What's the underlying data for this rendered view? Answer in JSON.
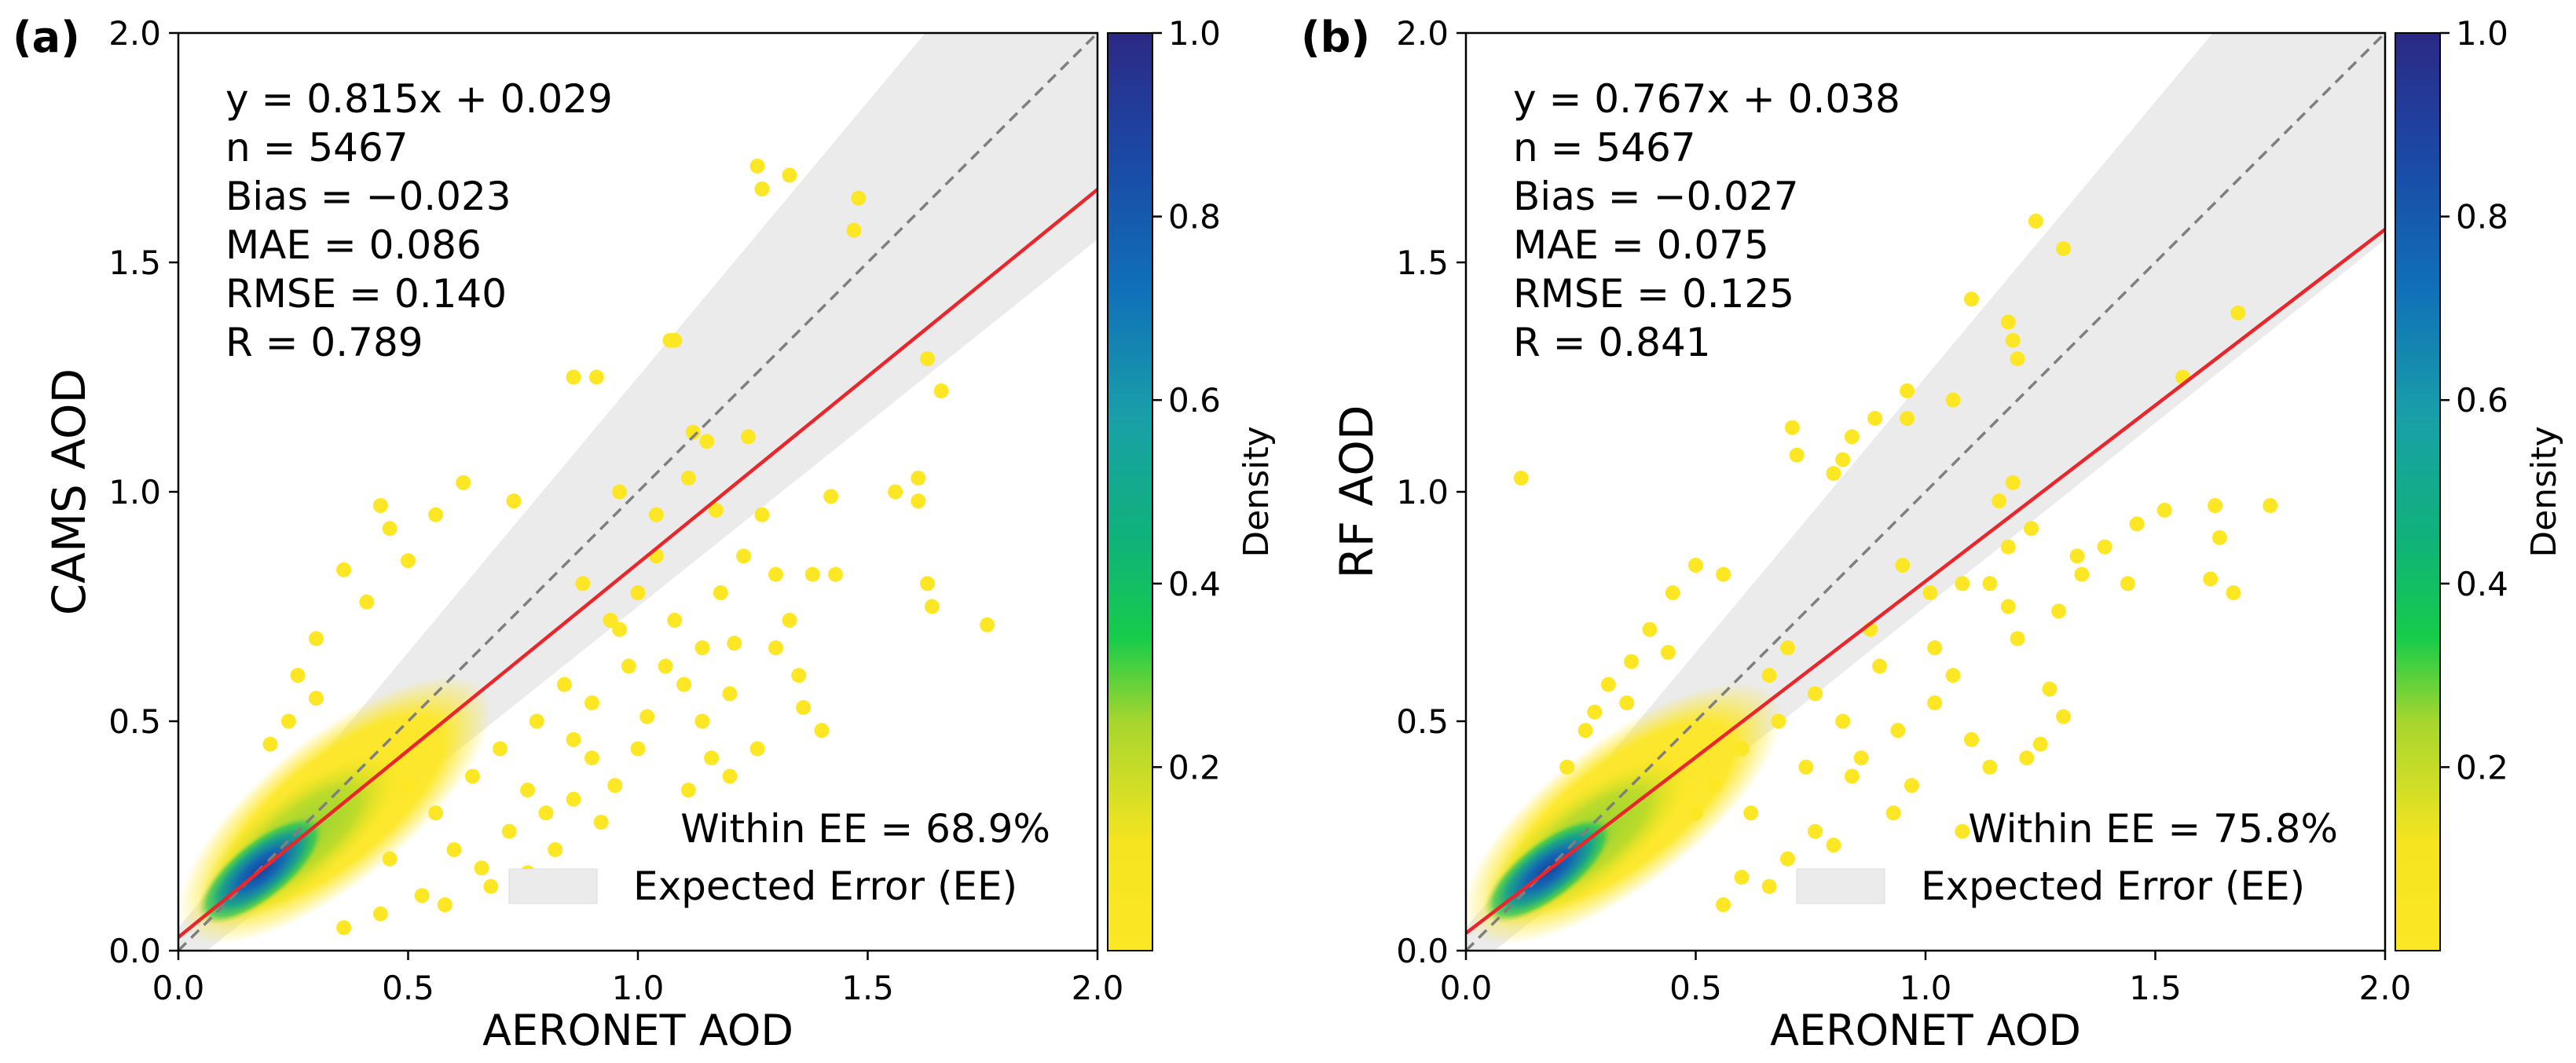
{
  "chart_data": [
    {
      "panel_label": "(a)",
      "type": "scatter",
      "xlabel": "AERONET AOD",
      "ylabel": "CAMS AOD",
      "xlim": [
        0,
        2.0
      ],
      "ylim": [
        0,
        2.0
      ],
      "ticks": [
        "0.0",
        "0.5",
        "1.0",
        "1.5",
        "2.0"
      ],
      "stats": [
        "y = 0.815x + 0.029",
        "n = 5467",
        "Bias = −0.023",
        "MAE = 0.086",
        "RMSE = 0.140",
        "R = 0.789"
      ],
      "fit": {
        "slope": 0.815,
        "intercept": 0.029,
        "color": "#e8262b"
      },
      "one_to_one": {
        "color": "#7f7f7f"
      },
      "ee_envelope": {
        "abs": 0.05,
        "rel": 0.2,
        "color": "#ebebeb"
      },
      "within_ee": "Within EE = 68.9%",
      "legend_entry": "Expected Error (EE)",
      "colorbar": {
        "label": "Density",
        "ticks": [
          "0.2",
          "0.4",
          "0.6",
          "0.8",
          "1.0"
        ],
        "range": [
          0,
          1.0
        ]
      },
      "outliers": [
        [
          1.26,
          1.71
        ],
        [
          1.33,
          1.69
        ],
        [
          1.27,
          1.66
        ],
        [
          1.48,
          1.64
        ],
        [
          1.47,
          1.57
        ],
        [
          1.63,
          1.29
        ],
        [
          1.66,
          1.22
        ],
        [
          1.07,
          1.33
        ],
        [
          1.08,
          1.33
        ],
        [
          0.86,
          1.25
        ],
        [
          0.91,
          1.25
        ],
        [
          1.12,
          1.13
        ],
        [
          1.15,
          1.11
        ],
        [
          1.24,
          1.12
        ],
        [
          1.56,
          1.0
        ],
        [
          1.61,
          1.03
        ],
        [
          1.61,
          0.98
        ],
        [
          1.42,
          0.99
        ],
        [
          1.38,
          0.82
        ],
        [
          1.43,
          0.82
        ],
        [
          1.63,
          0.8
        ],
        [
          1.64,
          0.75
        ],
        [
          1.76,
          0.71
        ],
        [
          1.23,
          0.86
        ],
        [
          1.3,
          0.82
        ],
        [
          1.18,
          0.78
        ],
        [
          1.33,
          0.72
        ],
        [
          1.21,
          0.67
        ],
        [
          1.3,
          0.66
        ],
        [
          1.36,
          0.53
        ],
        [
          1.4,
          0.48
        ],
        [
          1.26,
          0.44
        ],
        [
          1.2,
          0.56
        ],
        [
          1.1,
          0.58
        ],
        [
          1.06,
          0.62
        ],
        [
          0.98,
          0.62
        ],
        [
          1.02,
          0.51
        ],
        [
          1.14,
          0.5
        ],
        [
          1.16,
          0.42
        ],
        [
          1.0,
          0.44
        ],
        [
          0.95,
          0.36
        ],
        [
          1.11,
          0.35
        ],
        [
          1.2,
          0.38
        ],
        [
          0.9,
          0.42
        ],
        [
          0.86,
          0.33
        ],
        [
          0.8,
          0.3
        ],
        [
          0.92,
          0.28
        ],
        [
          0.82,
          0.22
        ],
        [
          0.72,
          0.26
        ],
        [
          0.76,
          0.35
        ],
        [
          1.04,
          0.95
        ],
        [
          1.11,
          1.03
        ],
        [
          1.17,
          0.96
        ],
        [
          0.96,
          1.0
        ],
        [
          1.04,
          0.86
        ],
        [
          1.27,
          0.95
        ],
        [
          0.62,
          1.02
        ],
        [
          0.73,
          0.98
        ],
        [
          0.56,
          0.95
        ],
        [
          0.44,
          0.97
        ],
        [
          0.46,
          0.92
        ],
        [
          0.36,
          0.83
        ],
        [
          0.5,
          0.85
        ],
        [
          0.3,
          0.68
        ],
        [
          0.41,
          0.76
        ],
        [
          0.26,
          0.6
        ],
        [
          0.3,
          0.55
        ],
        [
          0.46,
          0.2
        ],
        [
          0.6,
          0.22
        ],
        [
          0.66,
          0.18
        ],
        [
          0.68,
          0.14
        ],
        [
          0.58,
          0.1
        ],
        [
          0.53,
          0.12
        ],
        [
          0.44,
          0.08
        ],
        [
          0.36,
          0.05
        ],
        [
          0.76,
          0.17
        ],
        [
          0.24,
          0.5
        ],
        [
          0.2,
          0.45
        ],
        [
          1.35,
          0.6
        ],
        [
          0.94,
          0.72
        ],
        [
          0.88,
          0.8
        ],
        [
          0.84,
          0.58
        ],
        [
          0.78,
          0.5
        ],
        [
          1.08,
          0.72
        ],
        [
          1.14,
          0.66
        ],
        [
          0.96,
          0.7
        ],
        [
          1.0,
          0.78
        ],
        [
          0.7,
          0.44
        ],
        [
          0.64,
          0.38
        ],
        [
          0.56,
          0.3
        ],
        [
          0.5,
          0.36
        ],
        [
          0.86,
          0.46
        ],
        [
          0.9,
          0.54
        ]
      ]
    },
    {
      "panel_label": "(b)",
      "type": "scatter",
      "xlabel": "AERONET AOD",
      "ylabel": "RF AOD",
      "xlim": [
        0,
        2.0
      ],
      "ylim": [
        0,
        2.0
      ],
      "ticks": [
        "0.0",
        "0.5",
        "1.0",
        "1.5",
        "2.0"
      ],
      "stats": [
        "y = 0.767x + 0.038",
        "n = 5467",
        "Bias = −0.027",
        "MAE = 0.075",
        "RMSE = 0.125",
        "R = 0.841"
      ],
      "fit": {
        "slope": 0.767,
        "intercept": 0.038,
        "color": "#e8262b"
      },
      "one_to_one": {
        "color": "#7f7f7f"
      },
      "ee_envelope": {
        "abs": 0.05,
        "rel": 0.2,
        "color": "#ebebeb"
      },
      "within_ee": "Within EE = 75.8%",
      "legend_entry": "Expected Error (EE)",
      "colorbar": {
        "label": "Density",
        "ticks": [
          "0.2",
          "0.4",
          "0.6",
          "0.8",
          "1.0"
        ],
        "range": [
          0,
          1.0
        ]
      },
      "outliers": [
        [
          1.24,
          1.59
        ],
        [
          1.3,
          1.53
        ],
        [
          1.1,
          1.42
        ],
        [
          1.18,
          1.37
        ],
        [
          1.19,
          1.33
        ],
        [
          1.2,
          1.29
        ],
        [
          1.06,
          1.2
        ],
        [
          0.96,
          1.22
        ],
        [
          0.89,
          1.16
        ],
        [
          0.96,
          1.16
        ],
        [
          0.84,
          1.12
        ],
        [
          0.71,
          1.14
        ],
        [
          0.72,
          1.08
        ],
        [
          0.82,
          1.07
        ],
        [
          0.8,
          1.04
        ],
        [
          0.12,
          1.03
        ],
        [
          1.56,
          1.25
        ],
        [
          1.68,
          1.39
        ],
        [
          1.75,
          0.97
        ],
        [
          1.63,
          0.97
        ],
        [
          1.64,
          0.9
        ],
        [
          1.52,
          0.96
        ],
        [
          1.46,
          0.93
        ],
        [
          1.39,
          0.88
        ],
        [
          1.33,
          0.86
        ],
        [
          1.34,
          0.82
        ],
        [
          1.44,
          0.8
        ],
        [
          1.62,
          0.81
        ],
        [
          1.67,
          0.78
        ],
        [
          1.23,
          0.92
        ],
        [
          1.29,
          0.74
        ],
        [
          1.18,
          0.75
        ],
        [
          1.14,
          0.8
        ],
        [
          1.2,
          0.68
        ],
        [
          1.27,
          0.57
        ],
        [
          1.3,
          0.51
        ],
        [
          1.25,
          0.45
        ],
        [
          1.22,
          0.42
        ],
        [
          1.1,
          0.46
        ],
        [
          1.14,
          0.4
        ],
        [
          1.08,
          0.26
        ],
        [
          0.93,
          0.3
        ],
        [
          0.97,
          0.36
        ],
        [
          0.94,
          0.48
        ],
        [
          1.02,
          0.54
        ],
        [
          0.86,
          0.42
        ],
        [
          1.06,
          0.6
        ],
        [
          1.02,
          0.66
        ],
        [
          1.08,
          0.8
        ],
        [
          1.01,
          0.78
        ],
        [
          0.95,
          0.84
        ],
        [
          1.16,
          0.98
        ],
        [
          1.19,
          1.02
        ],
        [
          1.18,
          0.88
        ],
        [
          0.45,
          0.78
        ],
        [
          0.5,
          0.84
        ],
        [
          0.56,
          0.82
        ],
        [
          0.44,
          0.65
        ],
        [
          0.36,
          0.63
        ],
        [
          0.4,
          0.7
        ],
        [
          0.35,
          0.54
        ],
        [
          0.31,
          0.58
        ],
        [
          0.28,
          0.52
        ],
        [
          0.26,
          0.48
        ],
        [
          0.22,
          0.4
        ],
        [
          0.7,
          0.2
        ],
        [
          0.76,
          0.26
        ],
        [
          0.8,
          0.23
        ],
        [
          0.66,
          0.14
        ],
        [
          0.6,
          0.16
        ],
        [
          0.56,
          0.1
        ],
        [
          0.62,
          0.3
        ],
        [
          0.74,
          0.4
        ],
        [
          0.84,
          0.38
        ],
        [
          0.82,
          0.5
        ],
        [
          0.76,
          0.56
        ],
        [
          0.68,
          0.5
        ],
        [
          0.66,
          0.6
        ],
        [
          0.7,
          0.66
        ],
        [
          0.9,
          0.62
        ],
        [
          0.88,
          0.7
        ],
        [
          0.6,
          0.44
        ],
        [
          0.54,
          0.36
        ],
        [
          0.5,
          0.3
        ]
      ]
    }
  ]
}
